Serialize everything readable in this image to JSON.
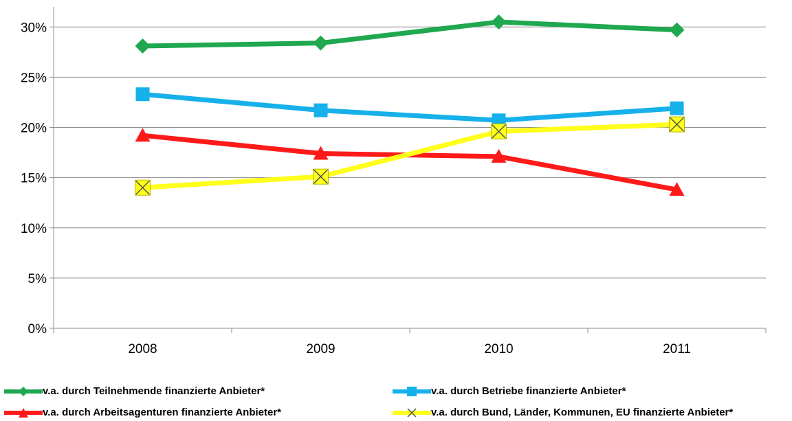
{
  "chart_data": {
    "type": "line",
    "title": "",
    "xlabel": "",
    "ylabel": "",
    "categories": [
      "2008",
      "2009",
      "2010",
      "2011"
    ],
    "ylim": [
      0,
      0.32
    ],
    "yticks": [
      "0%",
      "5%",
      "10%",
      "15%",
      "20%",
      "25%",
      "30%"
    ],
    "ytick_values": [
      0,
      0.05,
      0.1,
      0.15,
      0.2,
      0.25,
      0.3
    ],
    "grid": true,
    "legend_position": "bottom",
    "series": [
      {
        "name": "v.a. durch Teilnehmende finanzierte Anbieter*",
        "values": [
          0.281,
          0.284,
          0.305,
          0.297
        ],
        "color": "#1fa84f",
        "marker": "diamond"
      },
      {
        "name": "v.a. durch Betriebe finanzierte Anbieter*",
        "values": [
          0.233,
          0.217,
          0.207,
          0.219
        ],
        "color": "#16b0ea",
        "marker": "square"
      },
      {
        "name": "v.a. durch Arbeitsagenturen finanzierte Anbieter*",
        "values": [
          0.192,
          0.174,
          0.171,
          0.138
        ],
        "color": "#ff1a1a",
        "marker": "triangle"
      },
      {
        "name": "v.a. durch Bund, Länder, Kommunen, EU finanzierte Anbieter*",
        "values": [
          0.14,
          0.151,
          0.196,
          0.203
        ],
        "color": "#ffff1a",
        "marker": "x"
      }
    ]
  }
}
